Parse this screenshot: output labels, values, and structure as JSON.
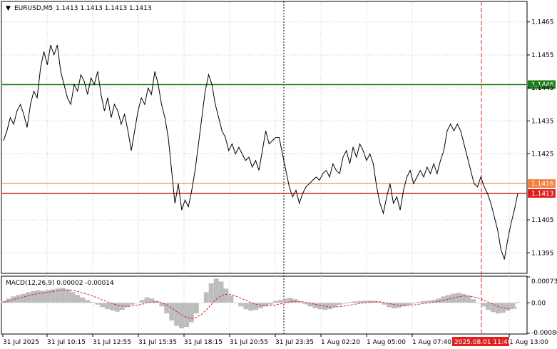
{
  "header": {
    "symbol_label": "EURUSD,M5",
    "ohlc_label": "1.1413 1.1413 1.1413 1.1413"
  },
  "price_axis": {
    "ticks": [
      "1.1465",
      "1.1455",
      "1.1445",
      "1.1435",
      "1.1425",
      "1.1405",
      "1.1395"
    ]
  },
  "price_lines": [
    {
      "name": "green-level",
      "value": 1.1446,
      "label": "1.1446",
      "color": "#1a7f1a",
      "label_bg": "#1a7f1a"
    },
    {
      "name": "orange-level",
      "value": 1.1416,
      "label": "1.1416",
      "color": "#f0803c",
      "label_bg": "#f0803c"
    },
    {
      "name": "red-level",
      "value": 1.1413,
      "label": "1.1413",
      "color": "#e02020",
      "label_bg": "#e02020"
    }
  ],
  "time_axis": {
    "labels": [
      "31 Jul 2025",
      "31 Jul 10:15",
      "31 Jul 12:55",
      "31 Jul 15:35",
      "31 Jul 18:15",
      "31 Jul 20:55",
      "31 Jul 23:35",
      "1 Aug 02:20",
      "1 Aug 05:00",
      "1 Aug 07:40",
      "1 Aug 13:00"
    ],
    "highlight_label": "2025.08.01 11:40",
    "highlight_color": "#e02020"
  },
  "macd": {
    "label": "MACD(12,26,9) 0.00002 -0.00014",
    "ticks": [
      "0.00073",
      "0.00",
      "-0.00086"
    ]
  },
  "chart_data": [
    {
      "type": "line",
      "title": "EURUSD,M5",
      "x_range": [
        "31 Jul 2025",
        "1 Aug 13:00"
      ],
      "ylim": [
        1.1389,
        1.1471
      ],
      "series": [
        {
          "values": [
            1.1429,
            1.1432,
            1.1436,
            1.1434,
            1.1438,
            1.144,
            1.1437,
            1.1433,
            1.144,
            1.1444,
            1.1442,
            1.1451,
            1.1456,
            1.1452,
            1.1458,
            1.1455,
            1.1458,
            1.145,
            1.1446,
            1.1442,
            1.144,
            1.1446,
            1.1444,
            1.1449,
            1.1447,
            1.1443,
            1.1448,
            1.1446,
            1.145,
            1.1443,
            1.1438,
            1.1442,
            1.1436,
            1.144,
            1.1438,
            1.1434,
            1.1437,
            1.1432,
            1.1426,
            1.1432,
            1.1438,
            1.1442,
            1.144,
            1.1445,
            1.1443,
            1.145,
            1.1446,
            1.144,
            1.1436,
            1.143,
            1.142,
            1.141,
            1.1416,
            1.1408,
            1.1411,
            1.1409,
            1.1414,
            1.142,
            1.1428,
            1.1436,
            1.1444,
            1.1449,
            1.1446,
            1.144,
            1.1436,
            1.1432,
            1.143,
            1.1426,
            1.1428,
            1.1425,
            1.1427,
            1.1425,
            1.1423,
            1.1424,
            1.1421,
            1.1423,
            1.142,
            1.1426,
            1.1432,
            1.1428,
            1.1429,
            1.143,
            1.143,
            1.1425,
            1.142,
            1.1415,
            1.1412,
            1.1414,
            1.141,
            1.1413,
            1.1415,
            1.1416,
            1.1417,
            1.1418,
            1.1417,
            1.1419,
            1.142,
            1.1418,
            1.1422,
            1.142,
            1.1419,
            1.1424,
            1.1426,
            1.1422,
            1.1427,
            1.1424,
            1.1428,
            1.1426,
            1.1423,
            1.1425,
            1.1422,
            1.1415,
            1.141,
            1.1407,
            1.1412,
            1.1416,
            1.141,
            1.1412,
            1.1408,
            1.1414,
            1.1418,
            1.142,
            1.1416,
            1.1418,
            1.142,
            1.1418,
            1.1421,
            1.1419,
            1.1422,
            1.1419,
            1.1423,
            1.1426,
            1.1432,
            1.1434,
            1.1432,
            1.1434,
            1.1432,
            1.1428,
            1.1424,
            1.142,
            1.1416,
            1.1415,
            1.1418,
            1.1415,
            1.1413,
            1.141,
            1.1406,
            1.1402,
            1.1396,
            1.1393,
            1.1399,
            1.1404,
            1.1408,
            1.1413
          ]
        }
      ]
    },
    {
      "type": "bar",
      "title": "MACD(12,26,9)",
      "ylim": [
        -0.00086,
        0.00073
      ],
      "series": [
        {
          "name": "histogram",
          "values": [
            5e-05,
            0.00012,
            0.00018,
            0.00022,
            0.00025,
            0.0003,
            0.00033,
            0.00035,
            0.00034,
            0.00036,
            0.00038,
            0.0004,
            0.00042,
            0.00038,
            0.0003,
            0.00022,
            0.00015,
            8e-05,
            2e-05,
            -5e-05,
            -0.00012,
            -0.00018,
            -0.00022,
            -0.00025,
            -0.0002,
            -0.00012,
            -5e-05,
            0.0,
            8e-05,
            0.00015,
            0.00012,
            5e-05,
            -0.0001,
            -0.0003,
            -0.0005,
            -0.00065,
            -0.00072,
            -0.00068,
            -0.00055,
            -0.0003,
            0.0,
            0.0003,
            0.00055,
            0.00068,
            0.0006,
            0.0004,
            0.0002,
            0.0,
            -0.0001,
            -0.00018,
            -0.00022,
            -0.0002,
            -0.00015,
            -0.0001,
            -5e-05,
            5e-05,
            8e-05,
            0.00012,
            0.00014,
            0.0001,
            4e-05,
            -4e-05,
            -0.0001,
            -0.00015,
            -0.00018,
            -0.0002,
            -0.00018,
            -0.00012,
            -6e-05,
            -2e-05,
            2e-05,
            4e-05,
            5e-05,
            6e-05,
            6e-05,
            5e-05,
            3e-05,
            -5e-05,
            -0.00012,
            -0.00016,
            -0.00014,
            -0.0001,
            -6e-05,
            -2e-05,
            3e-05,
            5e-05,
            6e-05,
            8e-05,
            0.00012,
            0.00018,
            0.00022,
            0.00026,
            0.00028,
            0.00025,
            0.0002,
            0.0001,
            0.0,
            -0.0001,
            -0.0002,
            -0.00026,
            -0.0003,
            -0.00028,
            -0.00022,
            -0.00014,
            2e-05
          ]
        },
        {
          "name": "signal",
          "values": [
            2e-05,
            5e-05,
            9e-05,
            0.00013,
            0.00016,
            0.0002,
            0.00023,
            0.00026,
            0.00028,
            0.0003,
            0.00032,
            0.00034,
            0.00036,
            0.00036,
            0.00035,
            0.00032,
            0.00028,
            0.00024,
            0.00019,
            0.00014,
            8e-05,
            3e-05,
            -2e-05,
            -6e-05,
            -9e-05,
            -0.0001,
            -9e-05,
            -7e-05,
            -4e-05,
            0.0,
            2e-05,
            3e-05,
            0.0,
            -6e-05,
            -0.00015,
            -0.00025,
            -0.00034,
            -0.00041,
            -0.00044,
            -0.00041,
            -0.00033,
            -0.0002,
            -5e-05,
            0.0001,
            0.0002,
            0.00024,
            0.00023,
            0.00019,
            0.00013,
            7e-05,
            1e-05,
            -4e-05,
            -7e-05,
            -8e-05,
            -8e-05,
            -6e-05,
            -3e-05,
            0.0,
            3e-05,
            4e-05,
            4e-05,
            2e-05,
            -1e-05,
            -4e-05,
            -7e-05,
            -0.0001,
            -0.00012,
            -0.00012,
            -0.00011,
            -9e-05,
            -7e-05,
            -4e-05,
            -2e-05,
            0.0,
            2e-05,
            3e-05,
            3e-05,
            1e-05,
            -2e-05,
            -5e-05,
            -7e-05,
            -7e-05,
            -7e-05,
            -6e-05,
            -4e-05,
            -2e-05,
            0.0,
            2e-05,
            4e-05,
            7e-05,
            0.0001,
            0.00014,
            0.00017,
            0.00019,
            0.00019,
            0.00017,
            0.00013,
            8e-05,
            2e-05,
            -4e-05,
            -0.0001,
            -0.00014,
            -0.00016,
            -0.00016,
            -0.00014
          ]
        }
      ]
    }
  ]
}
